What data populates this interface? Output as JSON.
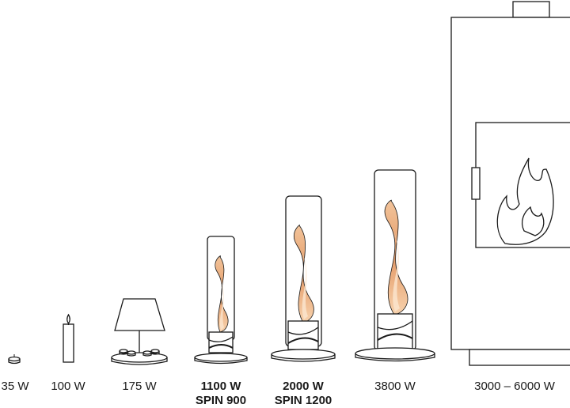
{
  "items": [
    {
      "id": "tealight",
      "line1": "35 W",
      "line2": "",
      "bold": false
    },
    {
      "id": "candle",
      "line1": "100 W",
      "line2": "",
      "bold": false
    },
    {
      "id": "lamp",
      "line1": "175 W",
      "line2": "",
      "bold": false
    },
    {
      "id": "spin900",
      "line1": "1100 W",
      "line2": "SPIN 900",
      "bold": true
    },
    {
      "id": "spin1200",
      "line1": "2000 W",
      "line2": "SPIN 1200",
      "bold": true
    },
    {
      "id": "spin-large",
      "line1": "3800 W",
      "line2": "",
      "bold": false
    },
    {
      "id": "stove",
      "line1": "3000 – 6000 W",
      "line2": "",
      "bold": false
    }
  ],
  "colors": {
    "outline": "#1a1a1a",
    "flame_outer": "#e6a070",
    "flame_inner": "#f4c9a0",
    "flame_core": "#fbe6cf"
  }
}
